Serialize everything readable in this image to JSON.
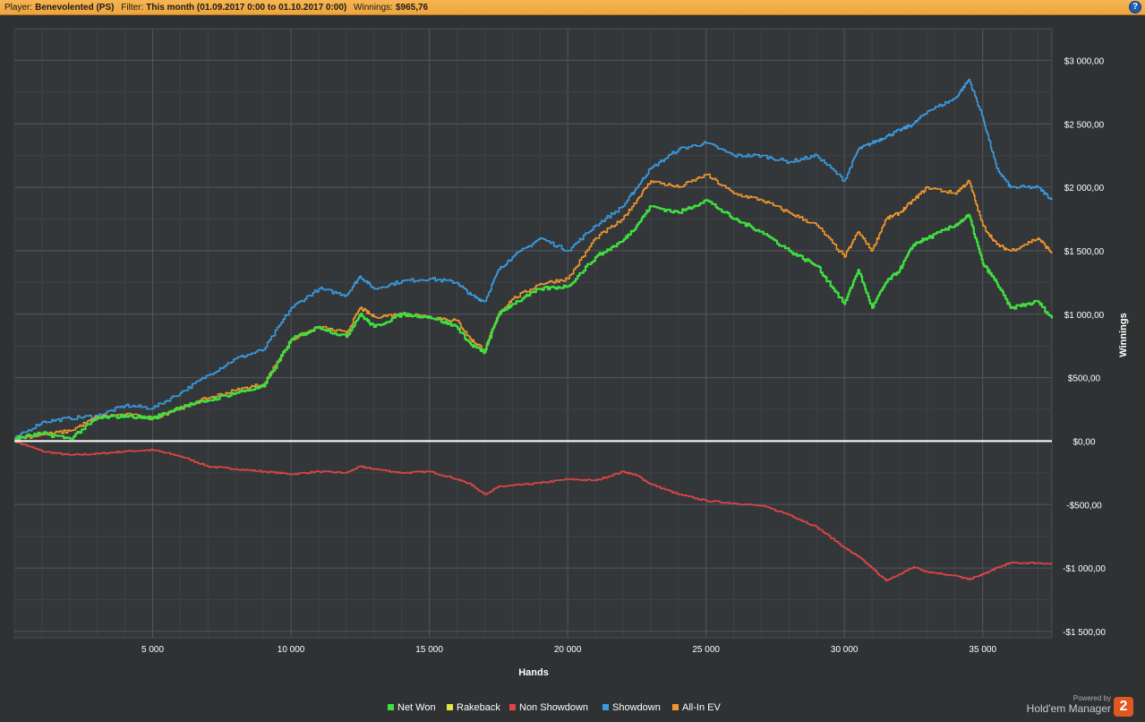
{
  "header": {
    "player_label": "Player:",
    "player_value": "Benevolented (PS)",
    "filter_label": "Filter:",
    "filter_value": "This month (01.09.2017 0:00 to 01.10.2017 0:00)",
    "winnings_label": "Winnings:",
    "winnings_value": "$965,76",
    "help_icon": "?"
  },
  "footer": {
    "powered_by": "Powered by",
    "product": "Hold'em Manager",
    "logo_text": "2"
  },
  "chart_data": {
    "type": "line",
    "xlabel": "Hands",
    "ylabel": "Winnings",
    "xlim": [
      0,
      37500
    ],
    "ylim": [
      -1550,
      3250
    ],
    "x_ticks": [
      5000,
      10000,
      15000,
      20000,
      25000,
      30000,
      35000
    ],
    "x_tick_labels": [
      "5 000",
      "10 000",
      "15 000",
      "20 000",
      "25 000",
      "30 000",
      "35 000"
    ],
    "y_ticks": [
      -1500,
      -1000,
      -500,
      0,
      500,
      1000,
      1500,
      2000,
      2500,
      3000
    ],
    "y_tick_labels": [
      "-$1 500,00",
      "-$1 000,00",
      "-$500,00",
      "$0,00",
      "$500,00",
      "$1 000,00",
      "$1 500,00",
      "$2 000,00",
      "$2 500,00",
      "$3 000,00"
    ],
    "grid": true,
    "legend_position": "bottom",
    "x": [
      0,
      1000,
      2000,
      3000,
      4000,
      5000,
      6000,
      7000,
      8000,
      9000,
      10000,
      11000,
      12000,
      12500,
      13000,
      14000,
      15000,
      16000,
      16500,
      17000,
      17500,
      18000,
      19000,
      20000,
      21000,
      22000,
      22500,
      23000,
      24000,
      25000,
      26000,
      27000,
      28000,
      29000,
      30000,
      30500,
      31000,
      31500,
      32000,
      32500,
      33000,
      34000,
      34500,
      35000,
      35500,
      36000,
      37000,
      37500
    ],
    "series": [
      {
        "name": "Net Won",
        "color": "#3fe13f",
        "values": [
          20,
          60,
          20,
          180,
          200,
          180,
          270,
          320,
          380,
          430,
          800,
          900,
          820,
          1000,
          900,
          1000,
          980,
          900,
          760,
          700,
          1000,
          1080,
          1200,
          1220,
          1450,
          1580,
          1700,
          1850,
          1800,
          1900,
          1750,
          1650,
          1500,
          1380,
          1080,
          1350,
          1050,
          1250,
          1350,
          1550,
          1600,
          1700,
          1780,
          1400,
          1250,
          1050,
          1100,
          966
        ]
      },
      {
        "name": "Rakeback",
        "color": "#e6e640",
        "values": [
          0,
          0,
          0,
          0,
          0,
          0,
          0,
          0,
          0,
          0,
          0,
          0,
          0,
          0,
          0,
          0,
          0,
          0,
          0,
          0,
          0,
          0,
          0,
          0,
          0,
          0,
          0,
          0,
          0,
          0,
          0,
          0,
          0,
          0,
          0,
          0,
          0,
          0,
          0,
          0,
          0,
          0,
          0,
          0,
          0,
          0,
          0,
          0
        ]
      },
      {
        "name": "Non Showdown",
        "color": "#e04545",
        "values": [
          0,
          -80,
          -110,
          -100,
          -80,
          -70,
          -120,
          -200,
          -220,
          -240,
          -260,
          -240,
          -250,
          -200,
          -220,
          -250,
          -240,
          -300,
          -340,
          -420,
          -360,
          -350,
          -330,
          -300,
          -310,
          -240,
          -270,
          -340,
          -420,
          -470,
          -490,
          -510,
          -580,
          -680,
          -840,
          -910,
          -1000,
          -1100,
          -1050,
          -990,
          -1030,
          -1060,
          -1090,
          -1050,
          -1000,
          -960,
          -960,
          -970
        ]
      },
      {
        "name": "Showdown",
        "color": "#3a9be0",
        "values": [
          20,
          150,
          180,
          200,
          280,
          260,
          380,
          520,
          650,
          720,
          1050,
          1200,
          1150,
          1300,
          1200,
          1260,
          1280,
          1250,
          1150,
          1100,
          1350,
          1450,
          1600,
          1500,
          1700,
          1850,
          2000,
          2150,
          2300,
          2350,
          2250,
          2250,
          2200,
          2250,
          2050,
          2300,
          2350,
          2400,
          2450,
          2500,
          2600,
          2700,
          2850,
          2550,
          2150,
          2000,
          2000,
          1900
        ]
      },
      {
        "name": "All-In EV",
        "color": "#f0962e",
        "values": [
          20,
          50,
          80,
          190,
          210,
          180,
          260,
          340,
          400,
          450,
          800,
          900,
          850,
          1050,
          980,
          1000,
          980,
          950,
          800,
          720,
          1000,
          1120,
          1240,
          1280,
          1600,
          1750,
          1900,
          2050,
          2000,
          2100,
          1950,
          1900,
          1800,
          1700,
          1450,
          1650,
          1500,
          1750,
          1800,
          1900,
          2000,
          1950,
          2050,
          1700,
          1550,
          1500,
          1600,
          1480
        ]
      }
    ]
  }
}
